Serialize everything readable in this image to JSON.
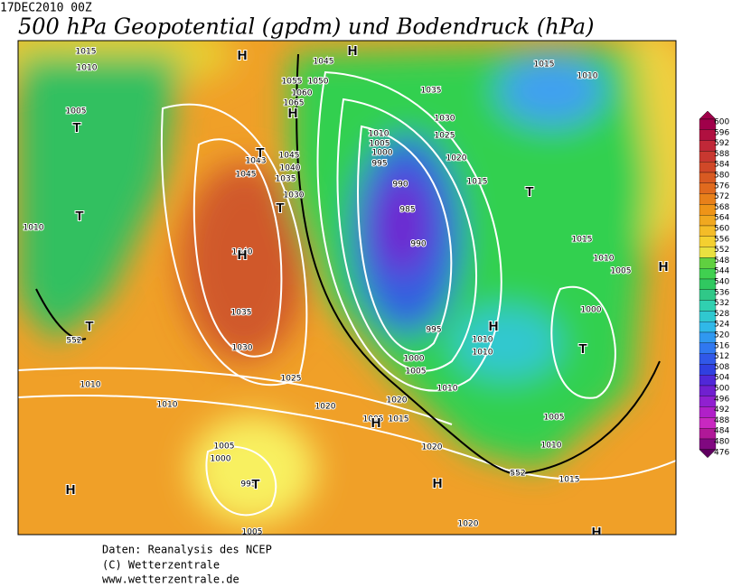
{
  "header": {
    "date": "17DEC2010 00Z",
    "title": "500 hPa Geopotential (gpdm) und Bodendruck (hPa)"
  },
  "legend": {
    "labels": [
      "600",
      "596",
      "592",
      "588",
      "584",
      "580",
      "576",
      "572",
      "568",
      "564",
      "560",
      "556",
      "552",
      "548",
      "544",
      "540",
      "536",
      "532",
      "528",
      "524",
      "520",
      "516",
      "512",
      "508",
      "504",
      "500",
      "496",
      "492",
      "488",
      "484",
      "480",
      "476"
    ]
  },
  "map": {
    "pressure_labels": [
      "1015",
      "1010",
      "1005",
      "1010",
      "1010",
      "1010",
      "1045",
      "1055",
      "1050",
      "1060",
      "1065",
      "1043",
      "1045",
      "1040",
      "1035",
      "1045",
      "1030",
      "1040",
      "1035",
      "1030",
      "1025",
      "1020",
      "1035",
      "1030",
      "1025",
      "1010",
      "1005",
      "1000",
      "995",
      "990",
      "985",
      "990",
      "1020",
      "1015",
      "995",
      "1000",
      "1005",
      "1010",
      "1010",
      "1010",
      "1020",
      "1015",
      "1005",
      "1005",
      "1000",
      "995",
      "1005",
      "1020",
      "1020",
      "1015",
      "1010",
      "1005",
      "1000",
      "1005",
      "1010",
      "1015",
      "1015",
      "1010",
      "552",
      "552"
    ],
    "centers": [
      "H",
      "H",
      "T",
      "T",
      "T",
      "H",
      "T",
      "T",
      "H",
      "T",
      "H",
      "H",
      "T",
      "H",
      "H",
      "H",
      "T",
      "H"
    ]
  },
  "footer": {
    "lines": [
      "Daten: Reanalysis des NCEP",
      "(C) Wetterzentrale",
      "www.wetterzentrale.de"
    ]
  }
}
